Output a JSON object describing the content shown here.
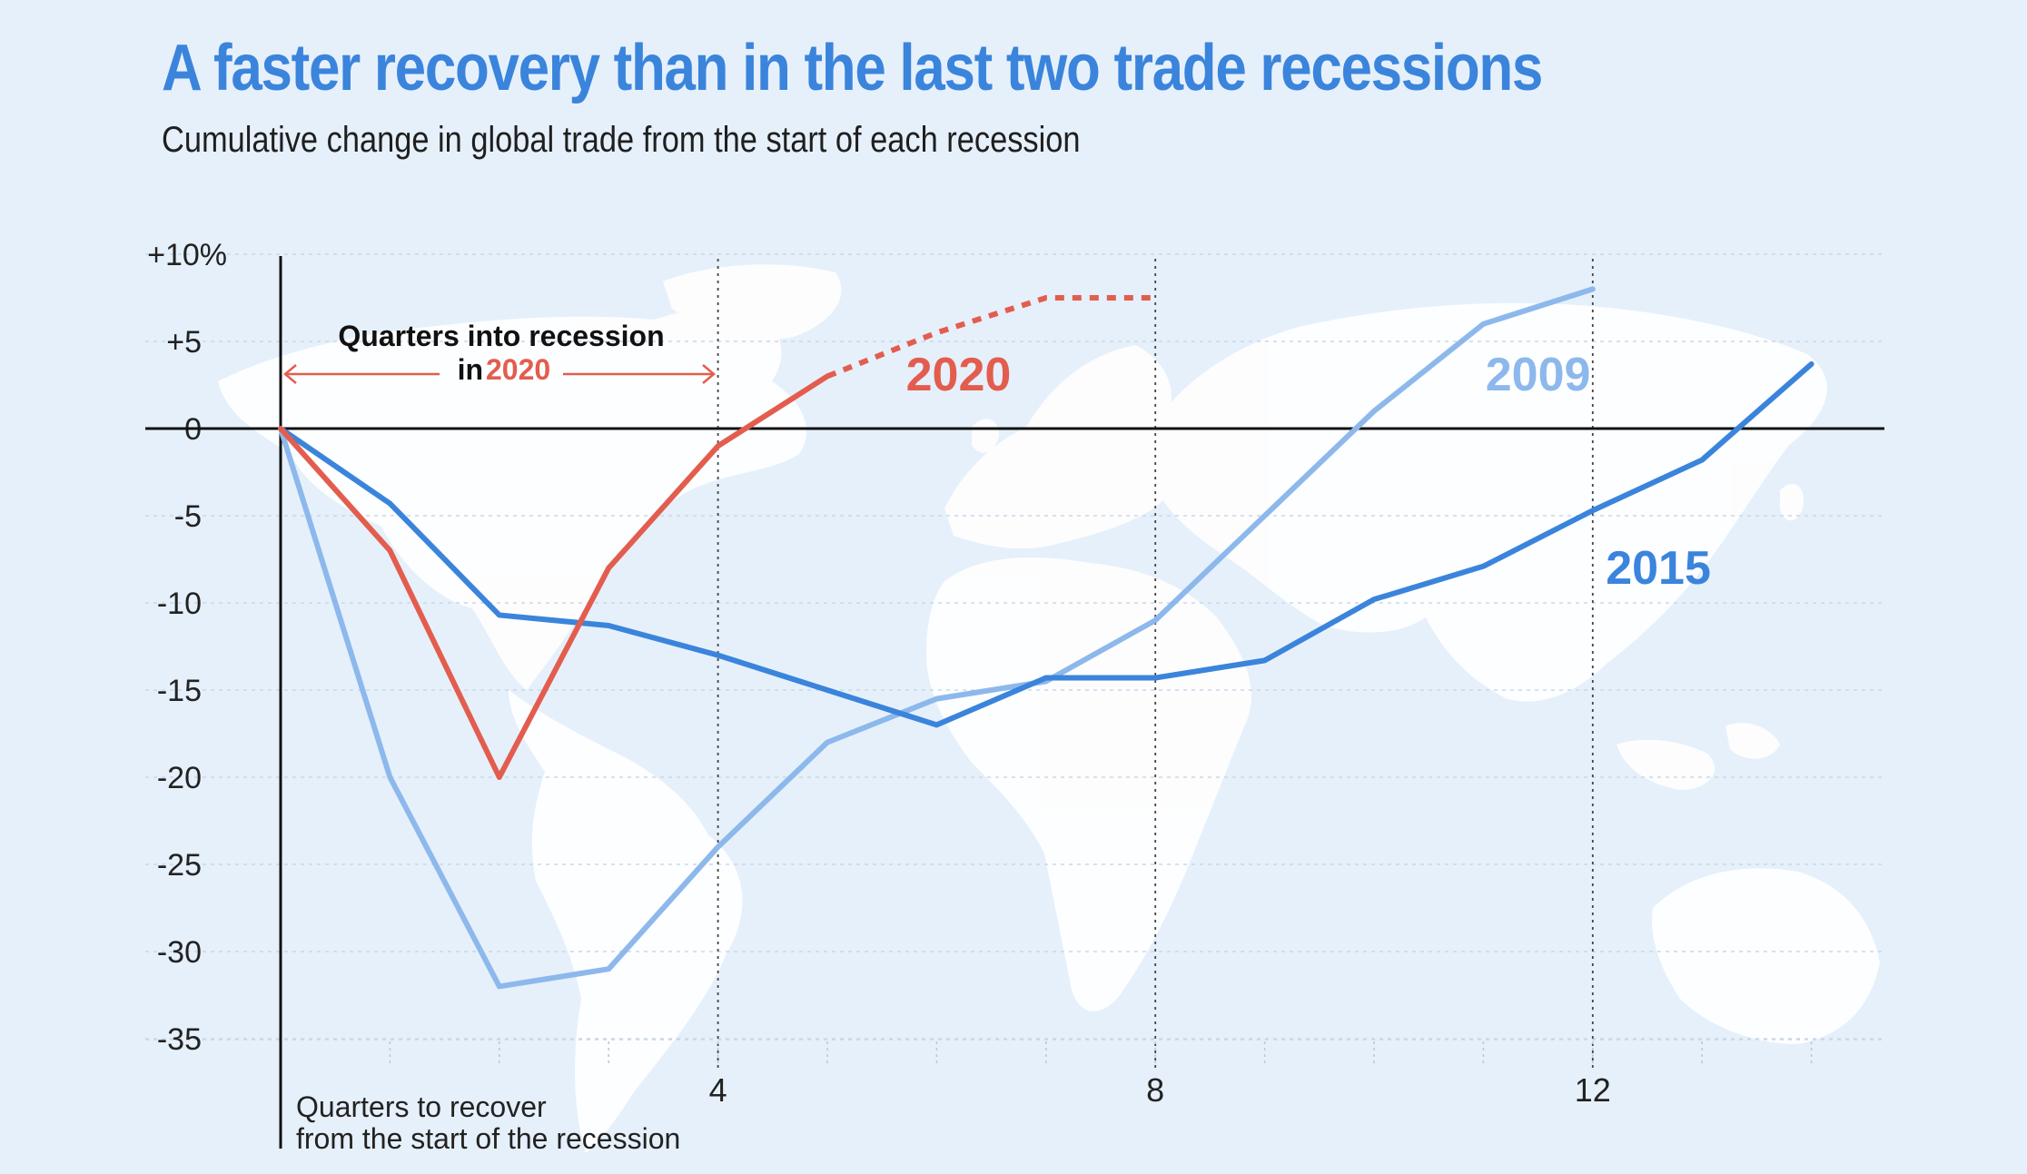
{
  "header": {
    "title": "A faster recovery than in the last two trade recessions",
    "subtitle": "Cumulative change in global trade from the start of each recession"
  },
  "annotations": {
    "quarters_into_prefix": "Quarters into recession",
    "quarters_into_in": "in",
    "quarters_into_year": "2020",
    "x_note_line1": "Quarters to recover",
    "x_note_line2": "from the start of the recession"
  },
  "colors": {
    "title": "#3a84dc",
    "s2020": "#e35d4e",
    "s2009": "#8db8ec",
    "s2015": "#3a84dc"
  },
  "chart_data": {
    "type": "line",
    "title": "A faster recovery than in the last two trade recessions",
    "subtitle": "Cumulative change in global trade from the start of each recession",
    "xlabel": "Quarters to recover from the start of the recession",
    "ylabel": "",
    "xlim": [
      0,
      14.5
    ],
    "ylim": [
      -35,
      10
    ],
    "x_ticks": [
      4,
      8,
      12
    ],
    "x_tick_labels": [
      "4",
      "8",
      "12"
    ],
    "y_ticks": [
      10,
      5,
      0,
      -5,
      -10,
      -15,
      -20,
      -25,
      -30,
      -35
    ],
    "y_tick_labels": [
      "+10%",
      "+5",
      "0",
      "-5",
      "-10",
      "-15",
      "-20",
      "-25",
      "-30",
      "-35"
    ],
    "grid": true,
    "series": [
      {
        "name": "2020",
        "x": [
          0,
          1,
          2,
          3,
          4,
          5
        ],
        "y": [
          0,
          -7,
          -20,
          -8,
          -1,
          3
        ],
        "projected_x": [
          5,
          6,
          7,
          8
        ],
        "projected_y": [
          3,
          5.5,
          7.5,
          7.5
        ]
      },
      {
        "name": "2009",
        "x": [
          0,
          1,
          2,
          3,
          4,
          5,
          6,
          7,
          8,
          9,
          10,
          11,
          12
        ],
        "y": [
          0,
          -20,
          -32,
          -31,
          -24,
          -18,
          -15.5,
          -14.5,
          -11,
          -5,
          1,
          6,
          8
        ]
      },
      {
        "name": "2015",
        "x": [
          0,
          1,
          2,
          3,
          4,
          5,
          6,
          7,
          8,
          9,
          10,
          11,
          12,
          13,
          14
        ],
        "y": [
          0,
          -4.3,
          -10.7,
          -11.3,
          -13,
          -15,
          -17,
          -14.3,
          -14.3,
          -13.3,
          -9.8,
          -7.9,
          -4.7,
          -1.8,
          3.7
        ]
      }
    ]
  }
}
